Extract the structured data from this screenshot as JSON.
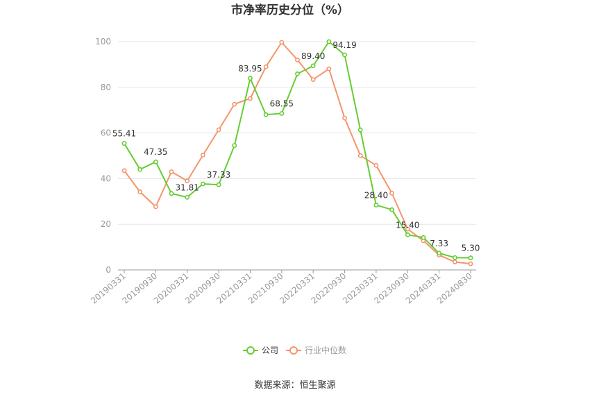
{
  "title": "市净率历史分位（%）",
  "source": "数据来源：恒生聚源",
  "colors": {
    "company": "#66cc33",
    "industry": "#f5946b",
    "grid": "#e6e6e6",
    "axis": "#999999"
  },
  "chart_data": {
    "type": "line",
    "title": "市净率历史分位（%）",
    "xlabel": "",
    "ylabel": "",
    "ylim": [
      0,
      100
    ],
    "yticks": [
      0,
      20,
      40,
      60,
      80,
      100
    ],
    "grid": true,
    "legend_position": "bottom",
    "x": [
      "20190331",
      "20190630",
      "20190930",
      "20191231",
      "20200331",
      "20200630",
      "20200930",
      "20201231",
      "20210331",
      "20210630",
      "20210930",
      "20211231",
      "20220331",
      "20220630",
      "20220930",
      "20221231",
      "20230331",
      "20230630",
      "20230930",
      "20231231",
      "20240331",
      "20240630",
      "20240830"
    ],
    "x_tick_labels": [
      "20190331",
      "20190930",
      "20200331",
      "20200930",
      "20210331",
      "20210930",
      "20220331",
      "20220930",
      "20230331",
      "20230930",
      "20240331",
      "20240830"
    ],
    "series": [
      {
        "name": "公司",
        "color": "#66cc33",
        "values": [
          55.41,
          44.0,
          47.35,
          33.5,
          31.81,
          37.7,
          37.33,
          54.5,
          83.95,
          68.0,
          68.55,
          85.9,
          89.4,
          100.0,
          94.19,
          61.3,
          28.4,
          26.4,
          15.4,
          14.2,
          7.33,
          5.4,
          5.3
        ],
        "labels": {
          "0": "55.41",
          "2": "47.35",
          "4": "31.81",
          "6": "37.33",
          "8": "83.95",
          "10": "68.55",
          "12": "89.40",
          "14": "94.19",
          "16": "28.40",
          "18": "15.40",
          "20": "7.33",
          "22": "5.30"
        }
      },
      {
        "name": "行业中位数",
        "color": "#f5946b",
        "values": [
          43.5,
          34.2,
          27.7,
          43.0,
          39.0,
          50.3,
          61.4,
          72.6,
          75.1,
          89.0,
          99.7,
          92.0,
          83.4,
          88.1,
          66.5,
          50.1,
          45.8,
          33.6,
          17.9,
          12.8,
          6.5,
          3.5,
          2.7
        ]
      }
    ]
  }
}
